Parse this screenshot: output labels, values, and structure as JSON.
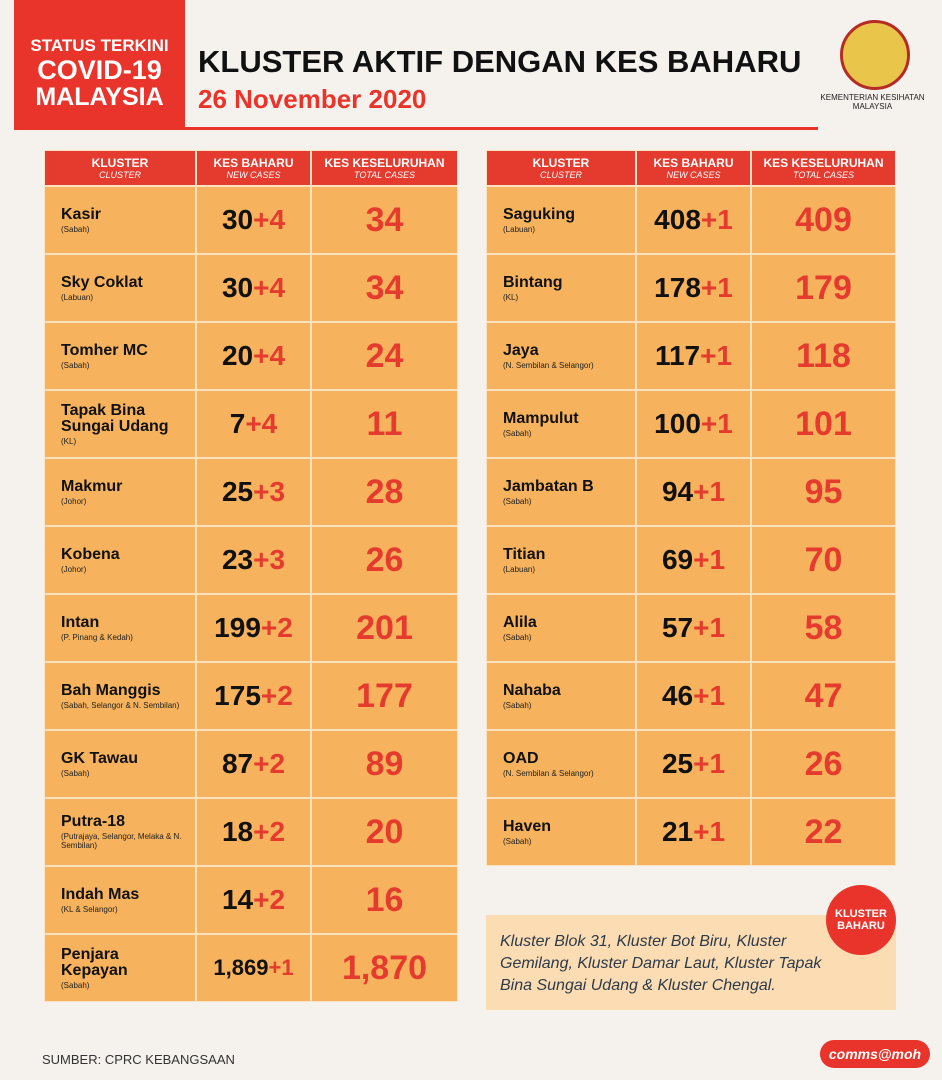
{
  "header": {
    "badge": [
      "STATUS TERKINI",
      "COVID-19",
      "MALAYSIA"
    ],
    "title": "KLUSTER AKTIF DENGAN KES BAHARU",
    "date": "26 November 2020",
    "ministry": [
      "KEMENTERIAN KESIHATAN",
      "MALAYSIA"
    ]
  },
  "tables": [
    {
      "columns": [
        {
          "label": "KLUSTER",
          "sub": "CLUSTER"
        },
        {
          "label": "KES BAHARU",
          "sub": "NEW CASES"
        },
        {
          "label": "KES KESELURUHAN",
          "sub": "TOTAL CASES"
        }
      ],
      "rows": [
        {
          "name": "Kasir",
          "region": "(Sabah)",
          "base": "30",
          "add": "+4",
          "total": "34"
        },
        {
          "name": "Sky Coklat",
          "region": "(Labuan)",
          "base": "30",
          "add": "+4",
          "total": "34"
        },
        {
          "name": "Tomher MC",
          "region": "(Sabah)",
          "base": "20",
          "add": "+4",
          "total": "24"
        },
        {
          "name": "Tapak Bina Sungai Udang",
          "region": "(KL)",
          "base": "7",
          "add": "+4",
          "total": "11"
        },
        {
          "name": "Makmur",
          "region": "(Johor)",
          "base": "25",
          "add": "+3",
          "total": "28"
        },
        {
          "name": "Kobena",
          "region": "(Johor)",
          "base": "23",
          "add": "+3",
          "total": "26"
        },
        {
          "name": "Intan",
          "region": "(P. Pinang & Kedah)",
          "base": "199",
          "add": "+2",
          "total": "201"
        },
        {
          "name": "Bah Manggis",
          "region": "(Sabah, Selangor & N. Sembilan)",
          "base": "175",
          "add": "+2",
          "total": "177"
        },
        {
          "name": "GK Tawau",
          "region": "(Sabah)",
          "base": "87",
          "add": "+2",
          "total": "89"
        },
        {
          "name": "Putra-18",
          "region": "(Putrajaya, Selangor, Melaka & N. Sembilan)",
          "base": "18",
          "add": "+2",
          "total": "20"
        },
        {
          "name": "Indah Mas",
          "region": "(KL & Selangor)",
          "base": "14",
          "add": "+2",
          "total": "16"
        },
        {
          "name": "Penjara Kepayan",
          "region": "(Sabah)",
          "base": "1,869",
          "add": "+1",
          "total": "1,870"
        }
      ]
    },
    {
      "columns": [
        {
          "label": "KLUSTER",
          "sub": "CLUSTER"
        },
        {
          "label": "KES BAHARU",
          "sub": "NEW CASES"
        },
        {
          "label": "KES KESELURUHAN",
          "sub": "TOTAL CASES"
        }
      ],
      "rows": [
        {
          "name": "Saguking",
          "region": "(Labuan)",
          "base": "408",
          "add": "+1",
          "total": "409"
        },
        {
          "name": "Bintang",
          "region": "(KL)",
          "base": "178",
          "add": "+1",
          "total": "179"
        },
        {
          "name": "Jaya",
          "region": "(N. Sembilan & Selangor)",
          "base": "117",
          "add": "+1",
          "total": "118"
        },
        {
          "name": "Mampulut",
          "region": "(Sabah)",
          "base": "100",
          "add": "+1",
          "total": "101"
        },
        {
          "name": "Jambatan B",
          "region": "(Sabah)",
          "base": "94",
          "add": "+1",
          "total": "95"
        },
        {
          "name": "Titian",
          "region": "(Labuan)",
          "base": "69",
          "add": "+1",
          "total": "70"
        },
        {
          "name": "Alila",
          "region": "(Sabah)",
          "base": "57",
          "add": "+1",
          "total": "58"
        },
        {
          "name": "Nahaba",
          "region": "(Sabah)",
          "base": "46",
          "add": "+1",
          "total": "47"
        },
        {
          "name": "OAD",
          "region": "(N. Sembilan & Selangor)",
          "base": "25",
          "add": "+1",
          "total": "26"
        },
        {
          "name": "Haven",
          "region": "(Sabah)",
          "base": "21",
          "add": "+1",
          "total": "22"
        }
      ]
    }
  ],
  "note": {
    "badge": [
      "KLUSTER",
      "BAHARU"
    ],
    "text": "Kluster Blok 31, Kluster Bot Biru, Kluster Gemilang, Kluster Damar Laut, Kluster Tapak Bina Sungai Udang & Kluster Chengal."
  },
  "footer": {
    "source": "SUMBER: CPRC KEBANGSAAN",
    "brand": "comms@moh"
  }
}
